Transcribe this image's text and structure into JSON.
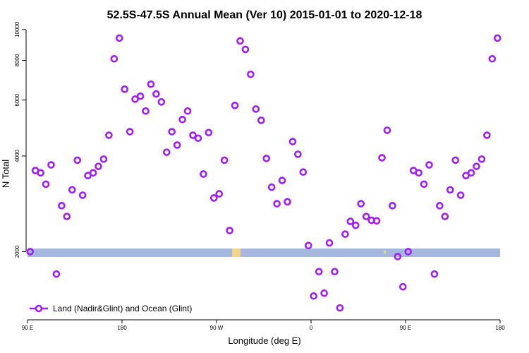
{
  "chart_data": {
    "type": "scatter",
    "title": "52.5S-47.5S Annual Mean (Ver 10)   2015-01-01 to 2020-12-18",
    "x_label": "Longitude (deg E)",
    "y_label": "N Total",
    "log_y": true,
    "legend": "lower left",
    "xlim": [
      90,
      540
    ],
    "xticks": [
      {
        "value": 90,
        "label": "90 E"
      },
      {
        "value": 180,
        "label": "180"
      },
      {
        "value": 270,
        "label": "90 W"
      },
      {
        "value": 360,
        "label": "0"
      },
      {
        "value": 450,
        "label": "90 E"
      },
      {
        "value": 540,
        "label": "180"
      }
    ],
    "ylim": [
      1220,
      10200
    ],
    "yticks": [
      2000,
      4000,
      6000,
      8000,
      10000
    ],
    "series": [
      {
        "name": "Land (Nadir&Glint) and Ocean (Glint)",
        "color": "#a020f0",
        "x": [
          92.5,
          97.5,
          102.5,
          107.5,
          112.5,
          117.5,
          122.5,
          127.5,
          132.5,
          137.5,
          142.5,
          147.5,
          152.5,
          157.5,
          162.5,
          167.5,
          172.5,
          177.5,
          182.5,
          187.5,
          192.5,
          197.5,
          202.5,
          207.5,
          212.5,
          217.5,
          222.5,
          227.5,
          232.5,
          237.5,
          242.5,
          247.5,
          252.5,
          257.5,
          262.5,
          267.5,
          272.5,
          277.5,
          282.5,
          287.5,
          292.5,
          297.5,
          302.5,
          307.5,
          312.5,
          317.5,
          322.5,
          327.5,
          332.5,
          337.5,
          342.5,
          347.5,
          352.5,
          357.5,
          362.5,
          367.5,
          372.5,
          377.5,
          382.5,
          387.5,
          392.5,
          397.5,
          402.5,
          407.5,
          412.5,
          417.5,
          422.5,
          427.5,
          432.5,
          437.5,
          442.5,
          447.5,
          452.5,
          457.5,
          462.5,
          467.5,
          472.5,
          477.5,
          482.5,
          487.5,
          492.5,
          497.5,
          502.5,
          507.5,
          512.5,
          517.5,
          522.5,
          527.5,
          532.5,
          537.5
        ],
        "values": [
          2000,
          3600,
          3540,
          3260,
          3750,
          1700,
          2790,
          2580,
          3130,
          3880,
          3010,
          3470,
          3540,
          3710,
          3910,
          4650,
          8090,
          9400,
          6490,
          4770,
          6040,
          6170,
          5540,
          6730,
          6270,
          5920,
          4110,
          4770,
          4330,
          5210,
          5540,
          4650,
          4550,
          3510,
          4740,
          2950,
          3040,
          3880,
          2330,
          5770,
          9210,
          8660,
          7230,
          5620,
          5180,
          3930,
          3190,
          2830,
          3350,
          2870,
          4440,
          4050,
          3560,
          2090,
          1450,
          1730,
          1480,
          2130,
          1730,
          1330,
          2270,
          2490,
          2420,
          2830,
          2580,
          2510,
          2500,
          3950,
          4820,
          2790,
          1930,
          1550,
          2000,
          3600,
          3540,
          3260,
          3750,
          1700,
          2790,
          2580,
          3130,
          3880,
          3010,
          3470,
          3540,
          3710,
          3910,
          4650,
          8090,
          9400
        ]
      }
    ]
  }
}
